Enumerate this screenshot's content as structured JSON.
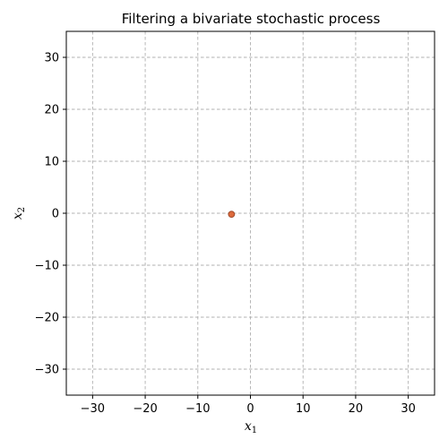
{
  "chart_data": {
    "type": "scatter",
    "title": "Filtering a bivariate stochastic process",
    "xlabel": {
      "base": "x",
      "sub": "1"
    },
    "ylabel": {
      "base": "x",
      "sub": "2"
    },
    "xlim": [
      -35,
      35
    ],
    "ylim": [
      -35,
      35
    ],
    "xticks": [
      -30,
      -20,
      -10,
      0,
      10,
      20,
      30
    ],
    "yticks": [
      -30,
      -20,
      -10,
      0,
      10,
      20,
      30
    ],
    "xtick_labels": [
      "−30",
      "−20",
      "−10",
      "0",
      "10",
      "20",
      "30"
    ],
    "ytick_labels": [
      "−30",
      "−20",
      "−10",
      "0",
      "10",
      "20",
      "30"
    ],
    "grid": true,
    "grid_style": "dashed",
    "grid_color": "#b0b0b0",
    "points": [
      {
        "x": -3.6,
        "y": -0.2,
        "color": "#dd6a3c",
        "edge_color": "#a04a2a"
      }
    ]
  }
}
